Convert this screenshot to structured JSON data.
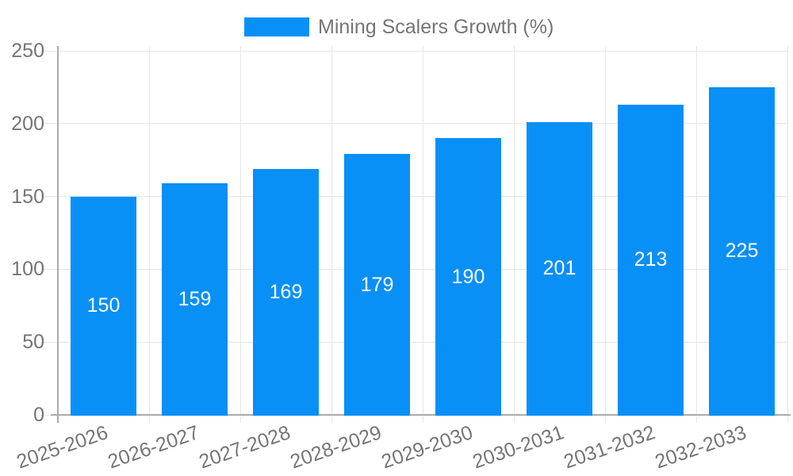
{
  "chart_data": {
    "type": "bar",
    "title": "Mining Scalers Growth (%)",
    "legend": {
      "label": "Mining Scalers Growth (%)",
      "position": "top-center"
    },
    "categories": [
      "2025-2026",
      "2026-2027",
      "2027-2028",
      "2028-2029",
      "2029-2030",
      "2030-2031",
      "2031-2032",
      "2032-2033"
    ],
    "values": [
      150,
      159,
      169,
      179,
      190,
      201,
      213,
      225
    ],
    "bar_labels": [
      "150",
      "159",
      "169",
      "179",
      "190",
      "201",
      "213",
      "225"
    ],
    "xlabel": "",
    "ylabel": "",
    "ylim": [
      0,
      250
    ],
    "yticks": [
      0,
      50,
      100,
      150,
      200,
      250
    ],
    "x_tick_rotation_deg": -19,
    "grid": true,
    "bar_label_position": "center",
    "colors": {
      "bar": "#0890F6",
      "bar_label": "#FFFFFF",
      "gridline": "#E6E6E6",
      "axis_line": "#ABABAB",
      "tick_text": "#757575",
      "legend_text": "#757575",
      "background": "#FFFFFF"
    }
  }
}
